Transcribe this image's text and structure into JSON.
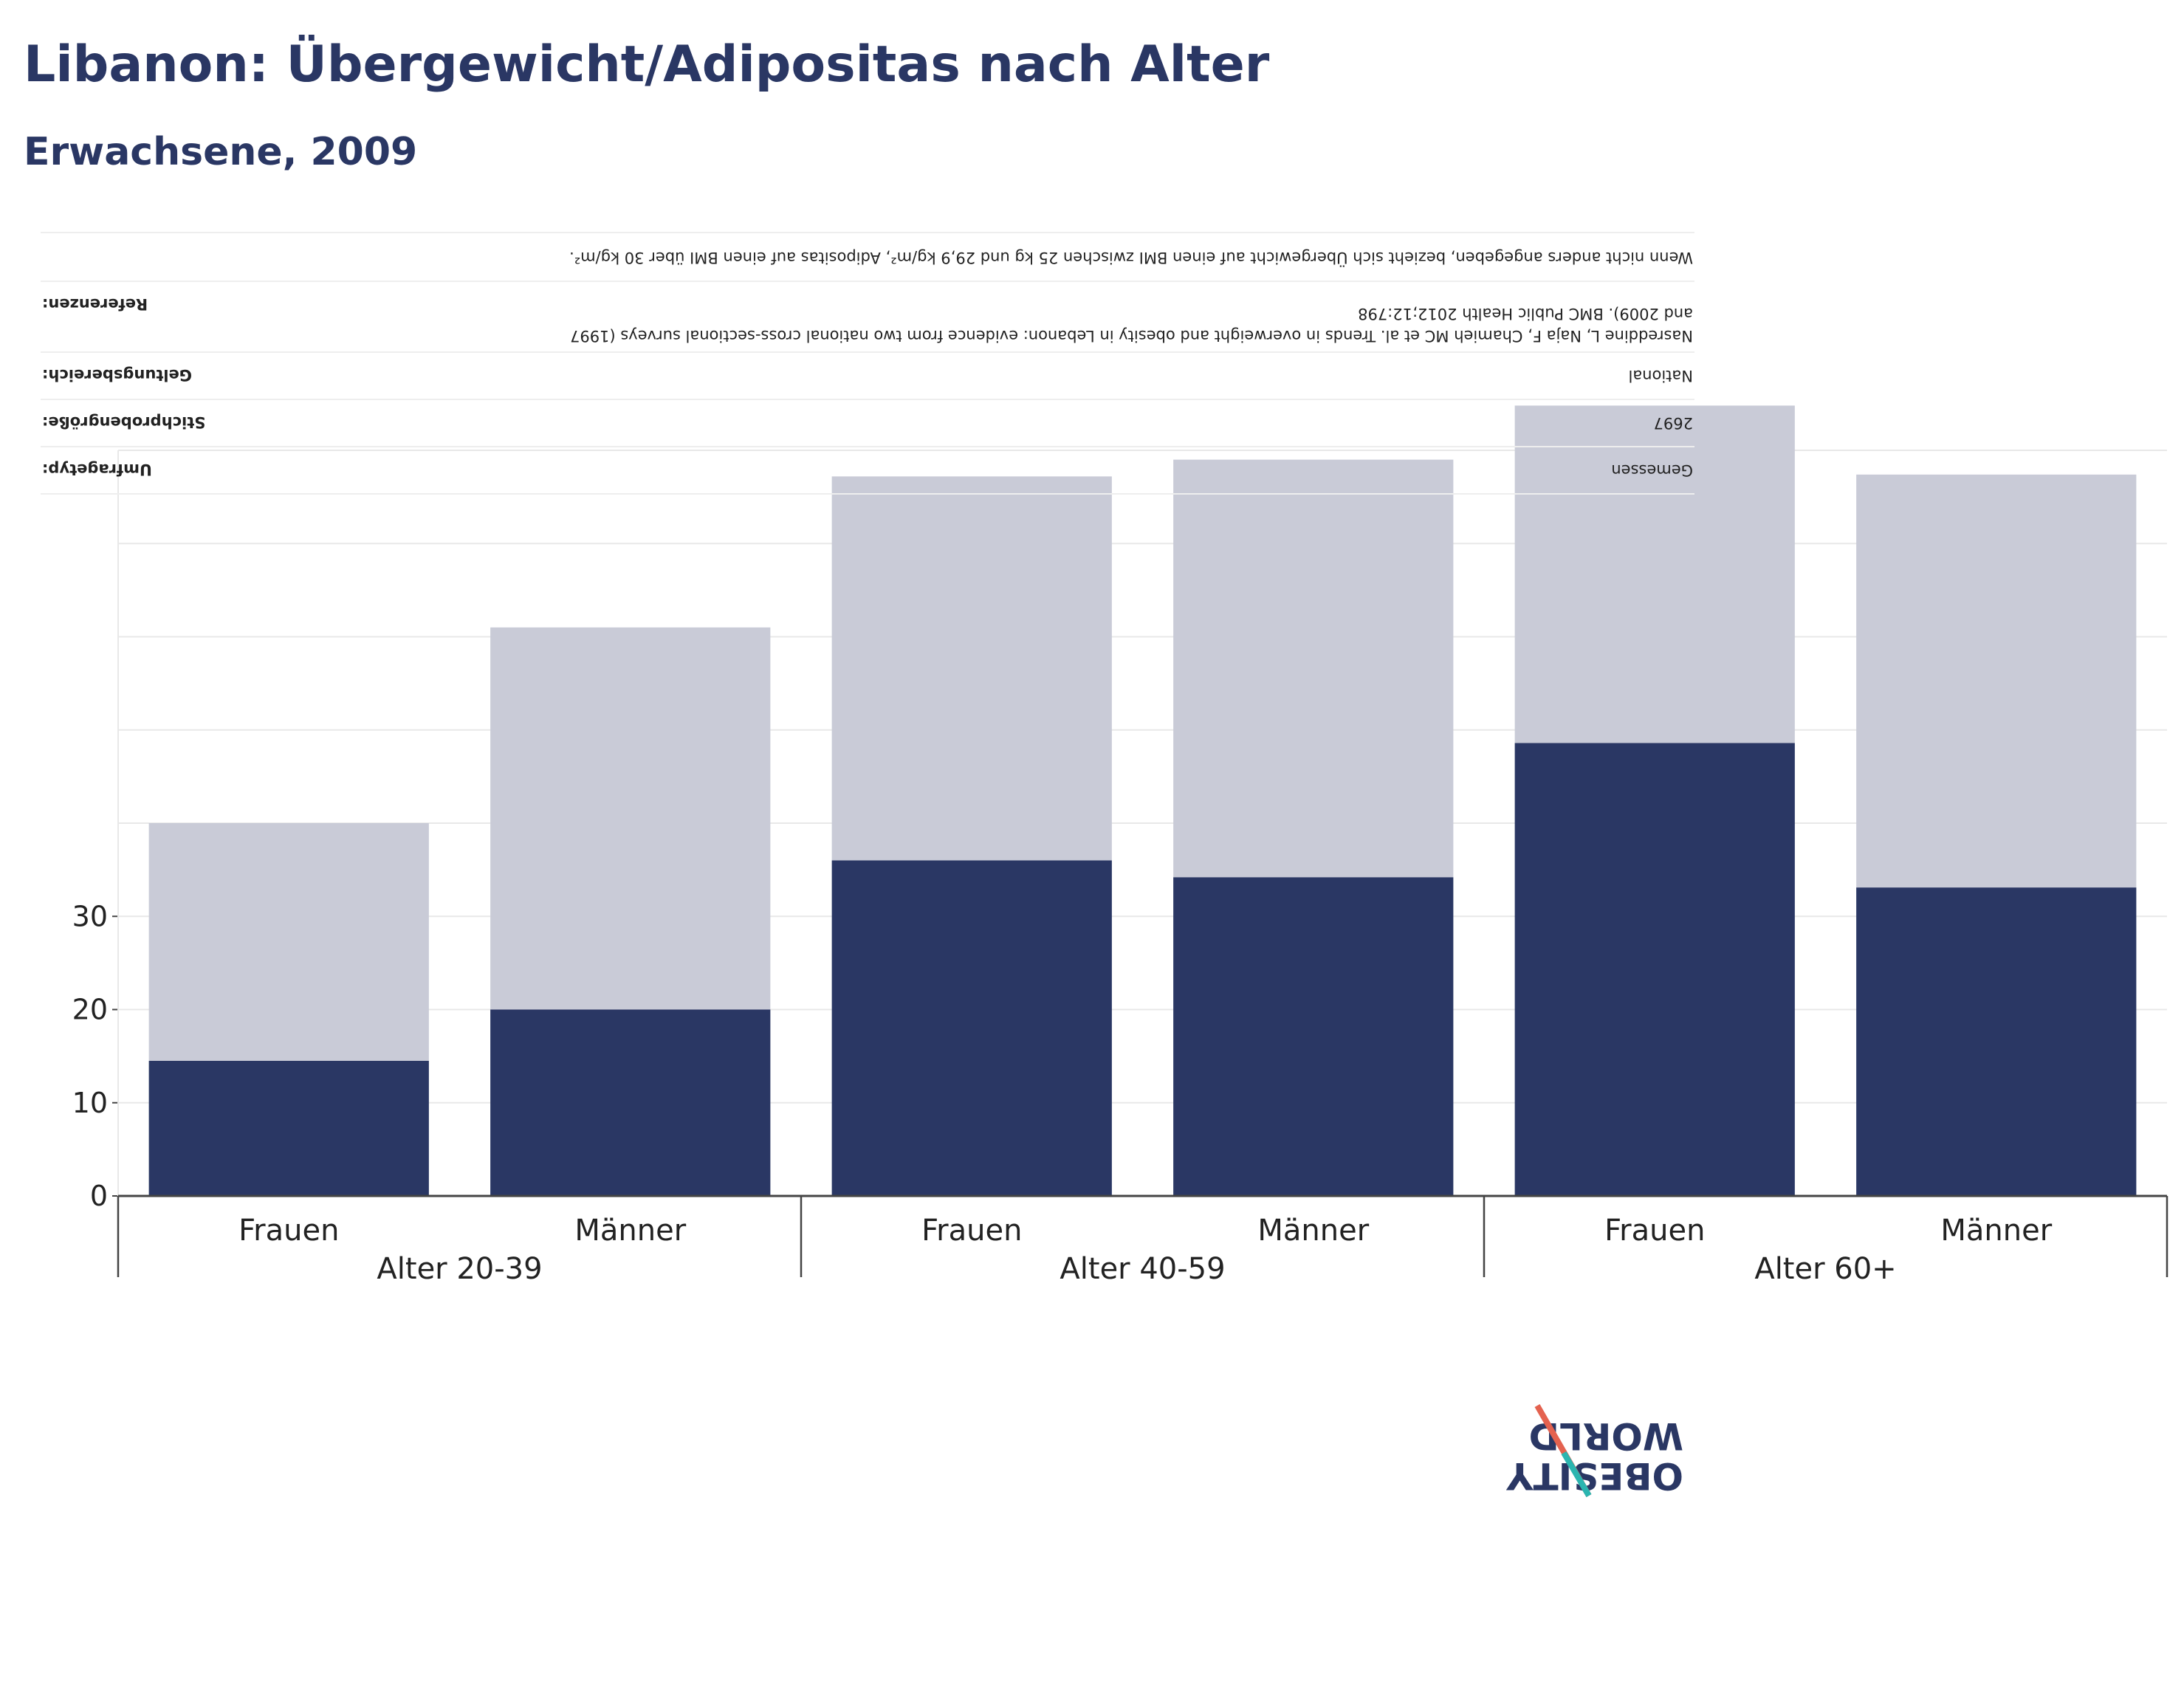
{
  "title": "Libanon: Übergewicht/Adipositas nach Alter",
  "subtitle": "Erwachsene, 2009",
  "colors": {
    "obesity": "#2a3764",
    "overweight": "#c9cbd7",
    "grid": "#e8e8e8",
    "axis": "#444444"
  },
  "metadata": {
    "rows": [
      {
        "label": "Umfragetyp:",
        "value": "Gemessen"
      },
      {
        "label": "Stichprobengröße:",
        "value": "2697"
      },
      {
        "label": "Geltungsbereich:",
        "value": "National"
      },
      {
        "label": "Referenzen:",
        "value": "Nasreddine L, Naja F, Chamieh MC et al. Trends in overweight and obesity in Lebanon: evidence from two national cross-sectional surveys (1997 and 2009). BMC Public Health 2012;12:798"
      },
      {
        "label": "",
        "value": "Wenn nicht anders angegeben, bezieht sich Übergewicht auf einen BMI zwischen 25 kg und 29,9 kg/m², Adipositas auf einen BMI über 30 kg/m²."
      }
    ]
  },
  "logo": {
    "line1": "OBESITY",
    "line2": "WORLD"
  },
  "chart_data": {
    "type": "bar",
    "stacked": true,
    "groups": [
      {
        "label": "Alter 20-39",
        "categories": [
          "Frauen",
          "Männer"
        ]
      },
      {
        "label": "Alter 40-59",
        "categories": [
          "Frauen",
          "Männer"
        ]
      },
      {
        "label": "Alter 60+",
        "categories": [
          "Frauen",
          "Männer"
        ]
      }
    ],
    "categories": [
      "Frauen",
      "Männer",
      "Frauen",
      "Männer",
      "Frauen",
      "Männer"
    ],
    "series": [
      {
        "values": [
          14.5,
          20.0,
          36.0,
          34.2,
          48.6,
          33.1
        ]
      },
      {
        "values": [
          25.5,
          41.0,
          41.2,
          44.8,
          36.2,
          44.3
        ]
      }
    ],
    "yticks": [
      0,
      10,
      20,
      30
    ],
    "ylim": [
      0,
      80
    ],
    "grid": true,
    "legend": "none"
  }
}
